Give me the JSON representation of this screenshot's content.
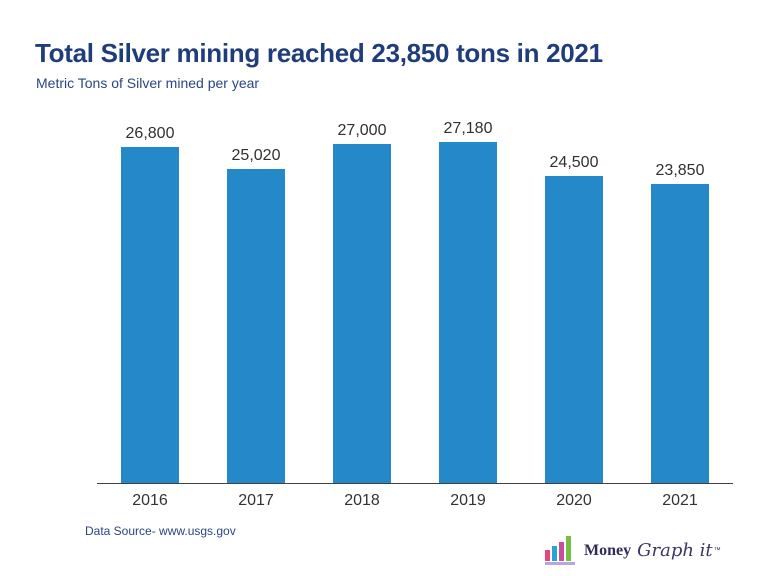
{
  "header": {
    "title": "Total Silver mining reached 23,850 tons in 2021",
    "subtitle": "Metric Tons of Silver mined per year"
  },
  "chart_data": {
    "type": "bar",
    "categories": [
      "2016",
      "2017",
      "2018",
      "2019",
      "2020",
      "2021"
    ],
    "values": [
      26800,
      25020,
      27000,
      27180,
      24500,
      23850
    ],
    "value_labels": [
      "26,800",
      "25,020",
      "27,000",
      "27,180",
      "24,500",
      "23,850"
    ],
    "title": "Total Silver mining reached 23,850 tons in 2021",
    "ylabel": "Metric Tons of Silver mined per year",
    "xlabel": "",
    "ylim": [
      0,
      27180
    ],
    "grid": false,
    "legend": false,
    "bar_color": "#2588C8"
  },
  "footer": {
    "source": "Data Source- www.usgs.gov",
    "logo": {
      "word1": "Money",
      "word2": "Graph it",
      "trademark": "™",
      "icon_bar_colors": [
        "#E8467F",
        "#29A3D7",
        "#C94F9E",
        "#76BF45"
      ],
      "icon_underline_color": "#B5A8DC"
    }
  },
  "colors": {
    "bar": "#2588C8",
    "title_text": "#1F3D7A",
    "subtitle_text": "#2A4584",
    "axis_line": "#404040",
    "label_text": "#303030",
    "source_text": "#2A4584",
    "logo_text": "#332B58"
  }
}
